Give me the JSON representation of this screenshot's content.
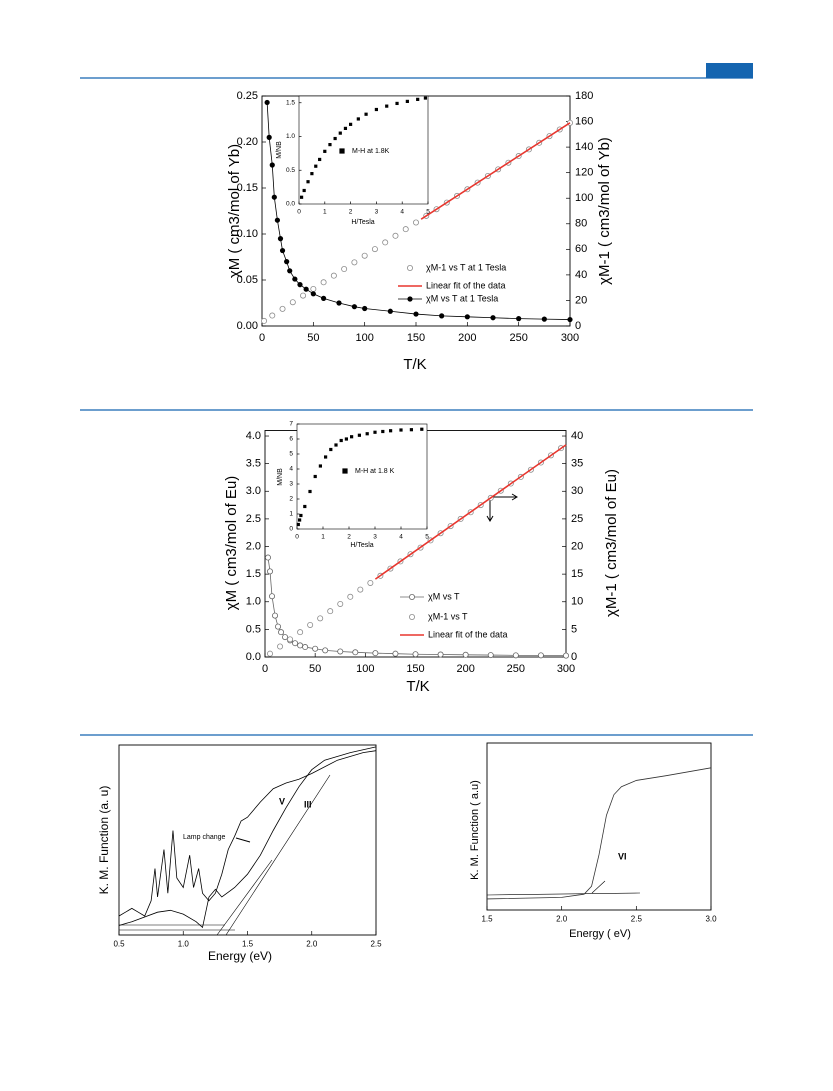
{
  "chart_data": [
    {
      "type": "scatter",
      "x_label": "T/K",
      "y_label": "χM ( cm3/mol of Yb)",
      "y2_label": "χM-1 ( cm3/mol of Yb)",
      "xlim": [
        0,
        300
      ],
      "xticks": [
        0,
        50,
        100,
        150,
        200,
        250,
        300
      ],
      "ylim": [
        0,
        0.25
      ],
      "yticks": [
        {
          "value": 0,
          "label": "0.00"
        },
        0.05,
        {
          "value": 0.1,
          "label": "0.10"
        },
        0.15,
        {
          "value": 0.2,
          "label": "0.20"
        },
        0.25
      ],
      "y2lim": [
        0,
        180
      ],
      "y2ticks": [
        0,
        20,
        40,
        60,
        80,
        100,
        120,
        140,
        160,
        180
      ],
      "series": [
        {
          "name": "χM-1 vs T at 1 Tesla",
          "axis": "y2",
          "marker": "open-circle",
          "color": "#8c8c8c",
          "x": [
            2,
            10,
            20,
            30,
            40,
            50,
            60,
            70,
            80,
            90,
            100,
            110,
            120,
            130,
            140,
            150,
            160,
            170,
            180,
            190,
            200,
            210,
            220,
            230,
            240,
            250,
            260,
            270,
            280,
            290,
            300
          ],
          "values": [
            4.0,
            8.2,
            13.4,
            18.6,
            23.8,
            29.0,
            34.2,
            39.4,
            44.6,
            49.8,
            55.0,
            60.2,
            65.4,
            70.6,
            75.8,
            81.0,
            86.2,
            91.4,
            96.6,
            101.8,
            107.0,
            112.2,
            117.4,
            122.6,
            127.8,
            133.0,
            138.2,
            143.4,
            148.6,
            153.8,
            159.0
          ]
        },
        {
          "name": "Linear fit of the data",
          "axis": "y2",
          "marker": "line",
          "color": "#e8372f",
          "x": [
            155,
            300
          ],
          "values": [
            83.6,
            159
          ]
        },
        {
          "name": "χM vs T at 1 Tesla",
          "marker": "filled-circle",
          "connect": true,
          "color": "#000000",
          "x": [
            5,
            7,
            10,
            12,
            15,
            18,
            20,
            24,
            27,
            32,
            37,
            43,
            50,
            60,
            75,
            90,
            100,
            125,
            150,
            175,
            200,
            225,
            250,
            275,
            300
          ],
          "values": [
            0.243,
            0.205,
            0.175,
            0.14,
            0.115,
            0.095,
            0.082,
            0.07,
            0.06,
            0.051,
            0.045,
            0.04,
            0.035,
            0.03,
            0.025,
            0.021,
            0.019,
            0.016,
            0.013,
            0.011,
            0.01,
            0.009,
            0.008,
            0.0075,
            0.007
          ]
        }
      ],
      "inset": {
        "type": "scatter",
        "x_label": "H/Tesla",
        "y_label": "M/NB",
        "xlim": [
          0,
          5
        ],
        "xticks": [
          0,
          1,
          2,
          3,
          4,
          5
        ],
        "ylim": [
          0,
          1.6
        ],
        "yticks": [
          {
            "value": 0,
            "label": "0.0"
          },
          0.5,
          {
            "value": 1,
            "label": "1.0"
          },
          1.5
        ],
        "series": [
          {
            "name": "M-H at 1.8K",
            "marker": "square",
            "color": "#000000",
            "x": [
              0.1,
              0.2,
              0.35,
              0.5,
              0.65,
              0.8,
              1.0,
              1.2,
              1.4,
              1.6,
              1.8,
              2.0,
              2.3,
              2.6,
              3.0,
              3.4,
              3.8,
              4.2,
              4.6,
              4.9
            ],
            "values": [
              0.1,
              0.2,
              0.33,
              0.45,
              0.56,
              0.66,
              0.78,
              0.88,
              0.97,
              1.05,
              1.12,
              1.18,
              1.26,
              1.33,
              1.4,
              1.45,
              1.49,
              1.52,
              1.55,
              1.57
            ]
          }
        ]
      }
    },
    {
      "type": "scatter",
      "x_label": "T/K",
      "y_label": "χM ( cm3/mol of Eu)",
      "y2_label": "χM-1 ( cm3/mol of Eu)",
      "xlim": [
        0,
        300
      ],
      "xticks": [
        0,
        50,
        100,
        150,
        200,
        250,
        300
      ],
      "ylim": [
        0,
        4.1
      ],
      "yticks": [
        {
          "value": 0,
          "label": "0.0"
        },
        0.5,
        {
          "value": 1,
          "label": "1.0"
        },
        1.5,
        {
          "value": 2,
          "label": "2.0"
        },
        2.5,
        {
          "value": 3,
          "label": "3.0"
        },
        3.5,
        {
          "value": 4,
          "label": "4.0"
        }
      ],
      "y2lim": [
        0,
        41
      ],
      "y2ticks": [
        0,
        5,
        10,
        15,
        20,
        25,
        30,
        35,
        40
      ],
      "series": [
        {
          "name": "χM vs T",
          "marker": "open-circle",
          "connect": true,
          "color": "#666666",
          "x": [
            3,
            5,
            7,
            10,
            13,
            16,
            20,
            25,
            30,
            35,
            40,
            50,
            60,
            75,
            90,
            110,
            130,
            150,
            175,
            200,
            225,
            250,
            275,
            300
          ],
          "values": [
            1.8,
            1.55,
            1.1,
            0.75,
            0.55,
            0.45,
            0.36,
            0.3,
            0.25,
            0.21,
            0.18,
            0.15,
            0.12,
            0.1,
            0.085,
            0.07,
            0.06,
            0.05,
            0.045,
            0.04,
            0.035,
            0.03,
            0.03,
            0.025
          ]
        },
        {
          "name": "χM-1 vs T",
          "axis": "y2",
          "marker": "open-circle",
          "color": "#8c8c8c",
          "x": [
            5,
            15,
            25,
            35,
            45,
            55,
            65,
            75,
            85,
            95,
            105,
            115,
            125,
            135,
            145,
            155,
            165,
            175,
            185,
            195,
            205,
            215,
            225,
            235,
            245,
            255,
            265,
            275,
            285,
            295
          ],
          "values": [
            0.6,
            1.9,
            3.2,
            4.5,
            5.8,
            7.0,
            8.3,
            9.6,
            10.9,
            12.2,
            13.4,
            14.7,
            16.0,
            17.3,
            18.6,
            19.8,
            21.1,
            22.4,
            23.7,
            25.0,
            26.2,
            27.5,
            28.8,
            30.1,
            31.4,
            32.6,
            33.9,
            35.2,
            36.5,
            37.8
          ]
        },
        {
          "name": "Linear fit of the data",
          "axis": "y2",
          "marker": "line",
          "color": "#e8372f",
          "x": [
            110,
            300
          ],
          "values": [
            14.1,
            38.4
          ]
        }
      ],
      "inset": {
        "type": "scatter",
        "x_label": "H/Tesla",
        "y_label": "M/NB",
        "xlim": [
          0,
          5
        ],
        "xticks": [
          0,
          1,
          2,
          3,
          4,
          5
        ],
        "ylim": [
          0,
          7
        ],
        "yticks": [
          0,
          1,
          2,
          3,
          4,
          5,
          6,
          7
        ],
        "series": [
          {
            "name": "M-H at 1.8 K",
            "marker": "square",
            "color": "#000000",
            "x": [
              0.05,
              0.1,
              0.15,
              0.3,
              0.5,
              0.7,
              0.9,
              1.1,
              1.3,
              1.5,
              1.7,
              1.9,
              2.1,
              2.4,
              2.7,
              3.0,
              3.3,
              3.6,
              4.0,
              4.4,
              4.8
            ],
            "values": [
              0.3,
              0.6,
              0.9,
              1.5,
              2.5,
              3.5,
              4.2,
              4.8,
              5.3,
              5.6,
              5.9,
              6.0,
              6.15,
              6.25,
              6.35,
              6.45,
              6.5,
              6.55,
              6.6,
              6.62,
              6.65
            ]
          }
        ]
      }
    },
    {
      "type": "line",
      "x_label": "Energy (eV)",
      "y_label": "K. M. Function (a. u)",
      "xlim": [
        0.5,
        2.5
      ],
      "xticks": [
        0.5,
        {
          "value": 1,
          "label": "1.0"
        },
        1.5,
        {
          "value": 2,
          "label": "2.0"
        },
        2.5
      ],
      "ylim": [
        0,
        1
      ],
      "annotations": [
        "Lamp change"
      ],
      "series": [
        {
          "name": "V",
          "marker": "line",
          "color": "#000000",
          "x": [
            0.5,
            0.55,
            0.6,
            0.65,
            0.7,
            0.75,
            0.78,
            0.8,
            0.85,
            0.88,
            0.92,
            0.95,
            1.0,
            1.05,
            1.08,
            1.12,
            1.15,
            1.2,
            1.25,
            1.3,
            1.35,
            1.4,
            1.45,
            1.5,
            1.6,
            1.7,
            1.8,
            1.9,
            2.0,
            2.2,
            2.4,
            2.5
          ],
          "values": [
            0.1,
            0.12,
            0.14,
            0.12,
            0.1,
            0.18,
            0.35,
            0.2,
            0.45,
            0.22,
            0.55,
            0.3,
            0.25,
            0.42,
            0.25,
            0.35,
            0.22,
            0.18,
            0.22,
            0.32,
            0.45,
            0.52,
            0.6,
            0.62,
            0.7,
            0.77,
            0.8,
            0.82,
            0.85,
            0.92,
            0.96,
            0.97
          ]
        },
        {
          "name": "III",
          "marker": "line",
          "color": "#000000",
          "x": [
            0.5,
            0.6,
            0.8,
            0.9,
            1.0,
            1.1,
            1.15,
            1.2,
            1.25,
            1.3,
            1.4,
            1.5,
            1.6,
            1.7,
            1.8,
            1.9,
            2.0,
            2.1,
            2.3,
            2.5
          ],
          "values": [
            0.05,
            0.07,
            0.12,
            0.13,
            0.11,
            0.07,
            0.04,
            0.2,
            0.24,
            0.2,
            0.25,
            0.32,
            0.42,
            0.55,
            0.67,
            0.78,
            0.87,
            0.92,
            0.96,
            0.99
          ]
        }
      ]
    },
    {
      "type": "line",
      "x_label": "Energy ( eV)",
      "y_label": "K. M. Function ( a.u)",
      "xlim": [
        1.5,
        3.0
      ],
      "xticks": [
        1.5,
        {
          "value": 2,
          "label": "2.0"
        },
        2.5,
        {
          "value": 3,
          "label": "3.0"
        }
      ],
      "ylim": [
        0,
        1
      ],
      "series": [
        {
          "name": "VI",
          "marker": "line",
          "color": "#333333",
          "x": [
            1.5,
            2.0,
            2.15,
            2.2,
            2.25,
            2.3,
            2.35,
            2.4,
            2.5,
            2.7,
            3.0
          ],
          "values": [
            0.07,
            0.08,
            0.1,
            0.15,
            0.35,
            0.6,
            0.73,
            0.78,
            0.82,
            0.85,
            0.9
          ]
        }
      ]
    }
  ]
}
